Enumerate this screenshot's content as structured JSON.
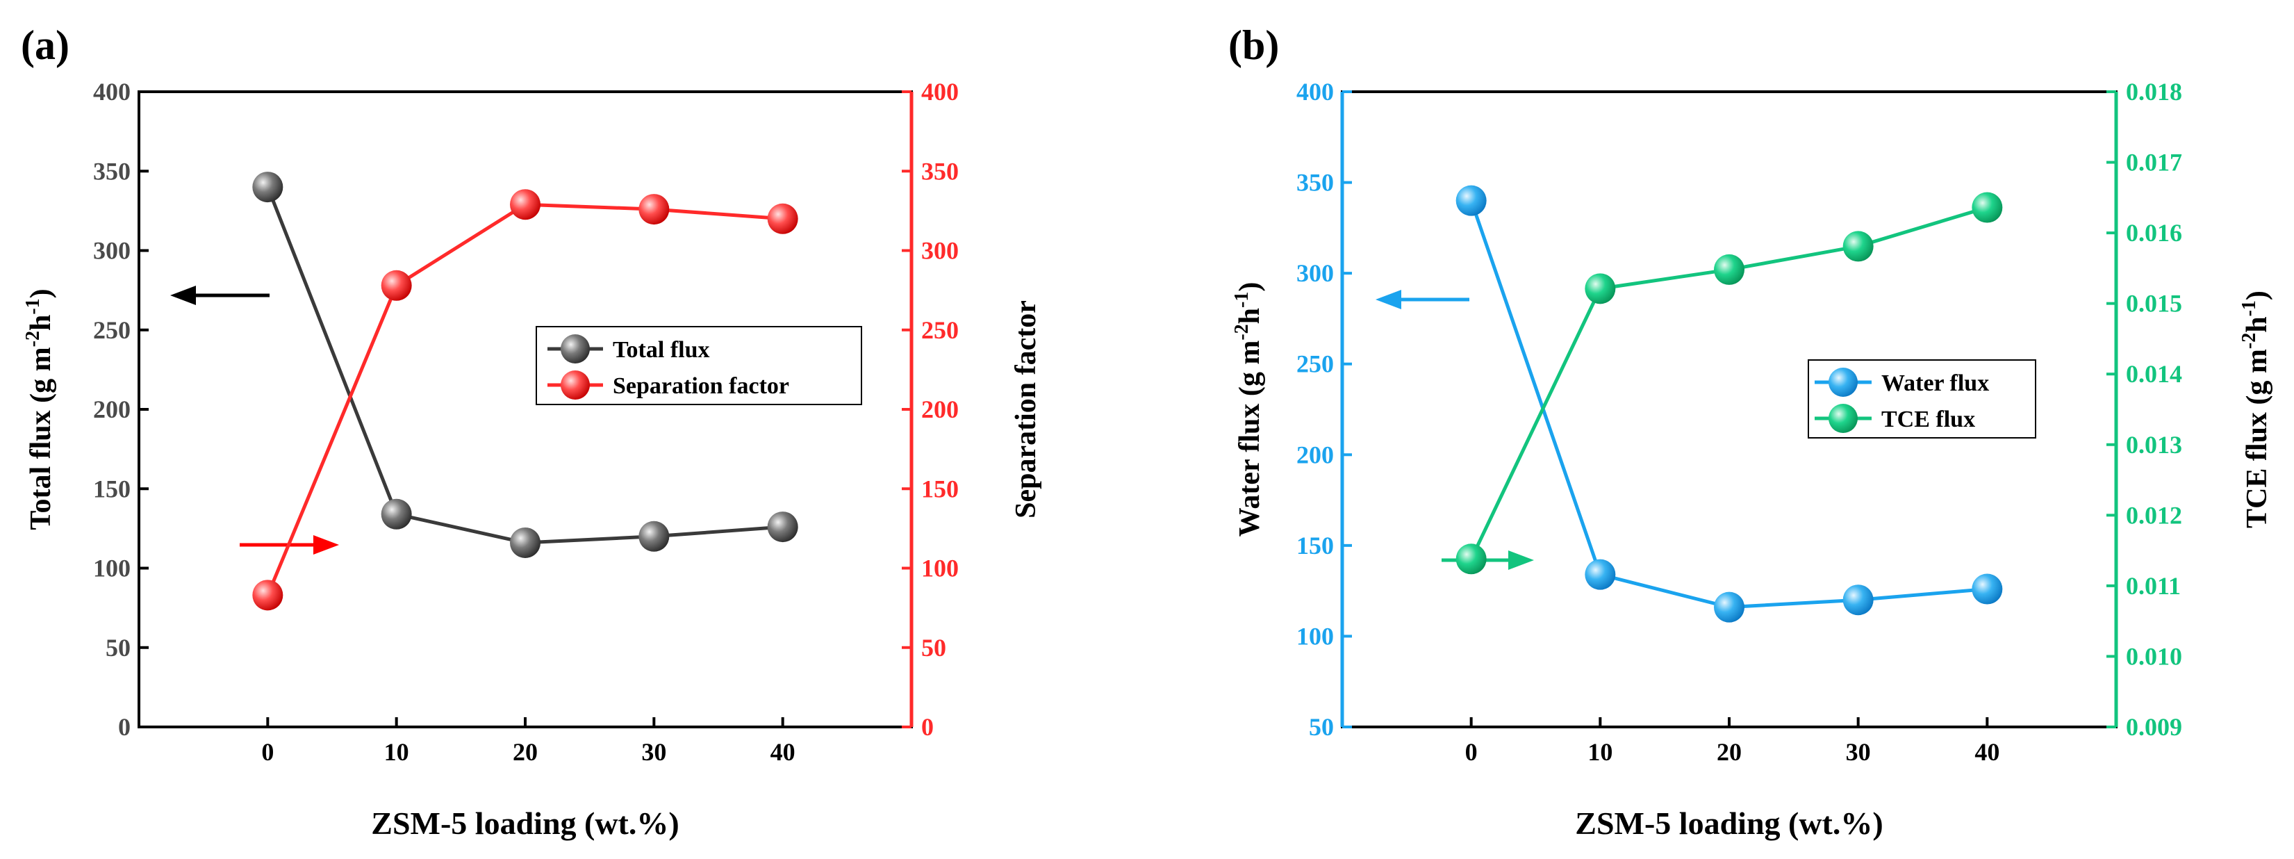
{
  "chart_data": [
    {
      "panel_label": "(a)",
      "type": "line",
      "categories": [
        "0",
        "10",
        "20",
        "30",
        "40"
      ],
      "x": [
        0,
        10,
        20,
        30,
        40
      ],
      "xlim": [
        -10,
        50
      ],
      "xlabel": "ZSM-5 loading (wt.%)",
      "left_axis": {
        "label": "Total flux (g m",
        "label_sup1": "-2",
        "label_mid": "h",
        "label_sup2": "-1",
        "label_end": ")",
        "ylim": [
          0,
          400
        ],
        "ticks": [
          "0",
          "50",
          "100",
          "150",
          "200",
          "250",
          "300",
          "350",
          "400"
        ],
        "color": "#4a4a4a"
      },
      "right_axis": {
        "label": "Separation factor",
        "ylim": [
          0,
          400
        ],
        "ticks": [
          "0",
          "50",
          "100",
          "150",
          "200",
          "250",
          "300",
          "350",
          "400"
        ],
        "color": "#ff2a2a"
      },
      "series": [
        {
          "name": "Total flux",
          "axis": "left",
          "color": "#3a3a3a",
          "values": [
            340,
            134,
            116,
            120,
            126
          ]
        },
        {
          "name": "Separation factor",
          "axis": "right",
          "color": "#ff2a2a",
          "values": [
            83,
            278,
            329,
            326,
            320
          ]
        }
      ],
      "legend_position": "center-right",
      "annotations": [
        {
          "kind": "arrow",
          "direction": "left",
          "points_to": "left axis",
          "color": "#000000"
        },
        {
          "kind": "arrow",
          "direction": "right",
          "points_to": "right axis",
          "color": "#ff0000"
        }
      ]
    },
    {
      "panel_label": "(b)",
      "type": "line",
      "categories": [
        "0",
        "10",
        "20",
        "30",
        "40"
      ],
      "x": [
        0,
        10,
        20,
        30,
        40
      ],
      "xlim": [
        -10,
        50
      ],
      "xlabel": "ZSM-5 loading (wt.%)",
      "left_axis": {
        "label": "Water flux (g m",
        "label_sup1": "-2",
        "label_mid": "h",
        "label_sup2": "-1",
        "label_end": ")",
        "ylim": [
          50,
          400
        ],
        "ticks": [
          "50",
          "100",
          "150",
          "200",
          "250",
          "300",
          "350",
          "400"
        ],
        "color": "#1aa3ee"
      },
      "right_axis": {
        "label": "TCE flux (g m",
        "label_sup1": "-2",
        "label_mid": "h",
        "label_sup2": "-1",
        "label_end": ")",
        "ylim": [
          0.009,
          0.018
        ],
        "ticks": [
          "0.009",
          "0.010",
          "0.011",
          "0.012",
          "0.013",
          "0.014",
          "0.015",
          "0.016",
          "0.017",
          "0.018"
        ],
        "color": "#12c47e"
      },
      "series": [
        {
          "name": "Water flux",
          "axis": "left",
          "color": "#1aa3ee",
          "values": [
            340,
            134,
            116,
            120,
            126
          ]
        },
        {
          "name": "TCE flux",
          "axis": "right",
          "color": "#12c47e",
          "values": [
            0.01138,
            0.01521,
            0.01548,
            0.01581,
            0.01636
          ]
        }
      ],
      "legend_position": "center-right",
      "annotations": [
        {
          "kind": "arrow",
          "direction": "left",
          "points_to": "left axis",
          "color": "#1aa3ee"
        },
        {
          "kind": "arrow",
          "direction": "right",
          "points_to": "right axis",
          "color": "#12c47e"
        }
      ]
    }
  ]
}
